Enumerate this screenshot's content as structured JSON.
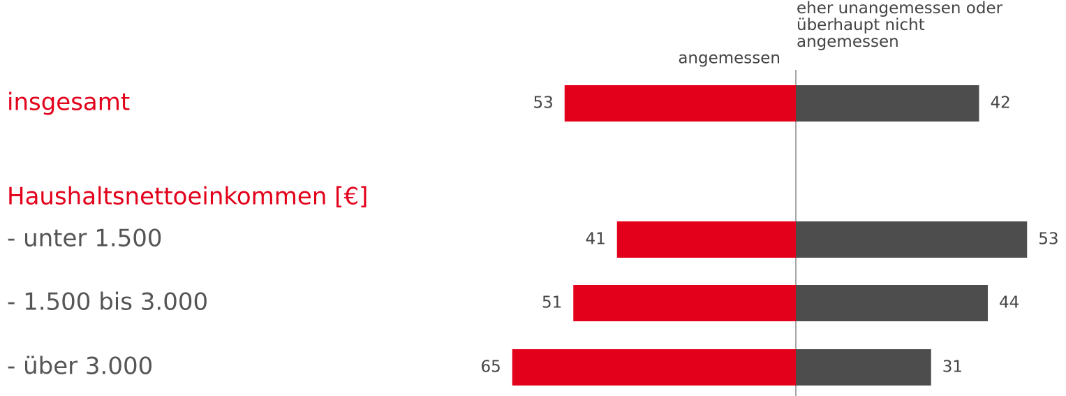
{
  "chart_data": {
    "type": "diverging_bar",
    "categories": [
      "insgesamt",
      "- unter 1.500",
      "- 1.500 bis 3.000",
      "- über 3.000"
    ],
    "group_label": "Haushaltsnettoeinkommen [€]",
    "series": [
      {
        "name": "angemessen",
        "color": "#e2001a",
        "values": [
          53,
          41,
          51,
          65
        ]
      },
      {
        "name": "eher unangemessen oder überhaupt nicht angemessen",
        "color": "#4d4d4d",
        "values": [
          42,
          53,
          44,
          31
        ]
      }
    ]
  }
}
